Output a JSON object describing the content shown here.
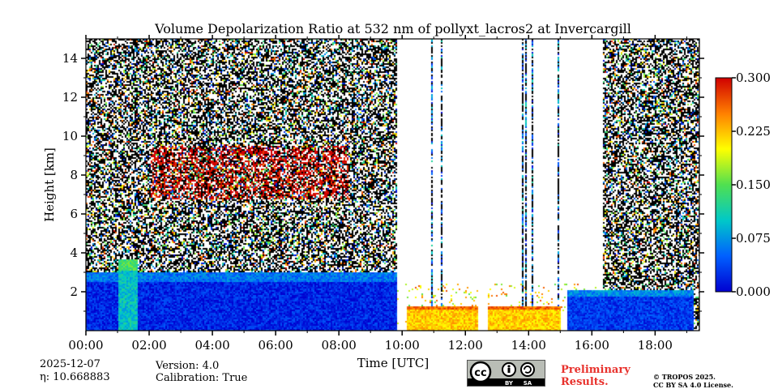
{
  "chart_data": {
    "type": "heatmap",
    "title": "Volume Depolarization Ratio at 532 nm of pollyxt_lacros2 at Invercargill",
    "xlabel": "Time [UTC]",
    "ylabel": "Height [km]",
    "x_tick_labels": [
      "00:00",
      "02:00",
      "04:00",
      "06:00",
      "08:00",
      "10:00",
      "12:00",
      "14:00",
      "16:00",
      "18:00"
    ],
    "x_ticks_hours": [
      0,
      2,
      4,
      6,
      8,
      10,
      12,
      14,
      16,
      18
    ],
    "xlim_hours": [
      0,
      19.4
    ],
    "y_tick_labels": [
      "2",
      "4",
      "6",
      "8",
      "10",
      "12",
      "14"
    ],
    "y_ticks_km": [
      2,
      4,
      6,
      8,
      10,
      12,
      14
    ],
    "ylim_km": [
      0,
      15
    ],
    "colorbar": {
      "ticks": [
        "0.000",
        "0.075",
        "0.150",
        "0.225",
        "0.300"
      ],
      "tick_values": [
        0,
        0.075,
        0.15,
        0.225,
        0.3
      ],
      "range": [
        0,
        0.3
      ],
      "colormap": [
        "#0000d0",
        "#0060ff",
        "#00c8c8",
        "#50e050",
        "#ffff00",
        "#ff8000",
        "#d00000"
      ]
    },
    "features": [
      {
        "name": "boundary layer aerosol",
        "start_h": 0,
        "end_h": 9.8,
        "top_km": 3.0,
        "value": 0.02
      },
      {
        "name": "dust plume",
        "start_h": 1.0,
        "end_h": 1.6,
        "top_km": 3.7,
        "value": 0.1
      },
      {
        "name": "cirrus clouds",
        "start_h": 2.0,
        "end_h": 8.3,
        "bottom_km": 6.8,
        "top_km": 9.5,
        "value": 0.3
      },
      {
        "name": "low cloud layer",
        "start_h": 10.1,
        "end_h": 15.0,
        "top_km": 1.3,
        "value": 0.22
      },
      {
        "name": "evening boundary layer",
        "start_h": 15.2,
        "end_h": 19.2,
        "top_km": 2.1,
        "value": 0.03
      },
      {
        "name": "no data gap",
        "start_h": 9.85,
        "end_h": 10.05
      },
      {
        "name": "no data gap",
        "start_h": 12.4,
        "end_h": 12.7
      }
    ]
  },
  "footer": {
    "date": "2025-12-07",
    "eta": "η: 10.668883",
    "version": "Version: 4.0",
    "calibration": "Calibration: True",
    "preliminary_line1": "Preliminary",
    "preliminary_line2": "Results.",
    "copyright_line1": "© TROPOS 2025.",
    "copyright_line2": "CC BY SA 4.0 License.",
    "license_by": "BY",
    "license_sa": "SA"
  }
}
